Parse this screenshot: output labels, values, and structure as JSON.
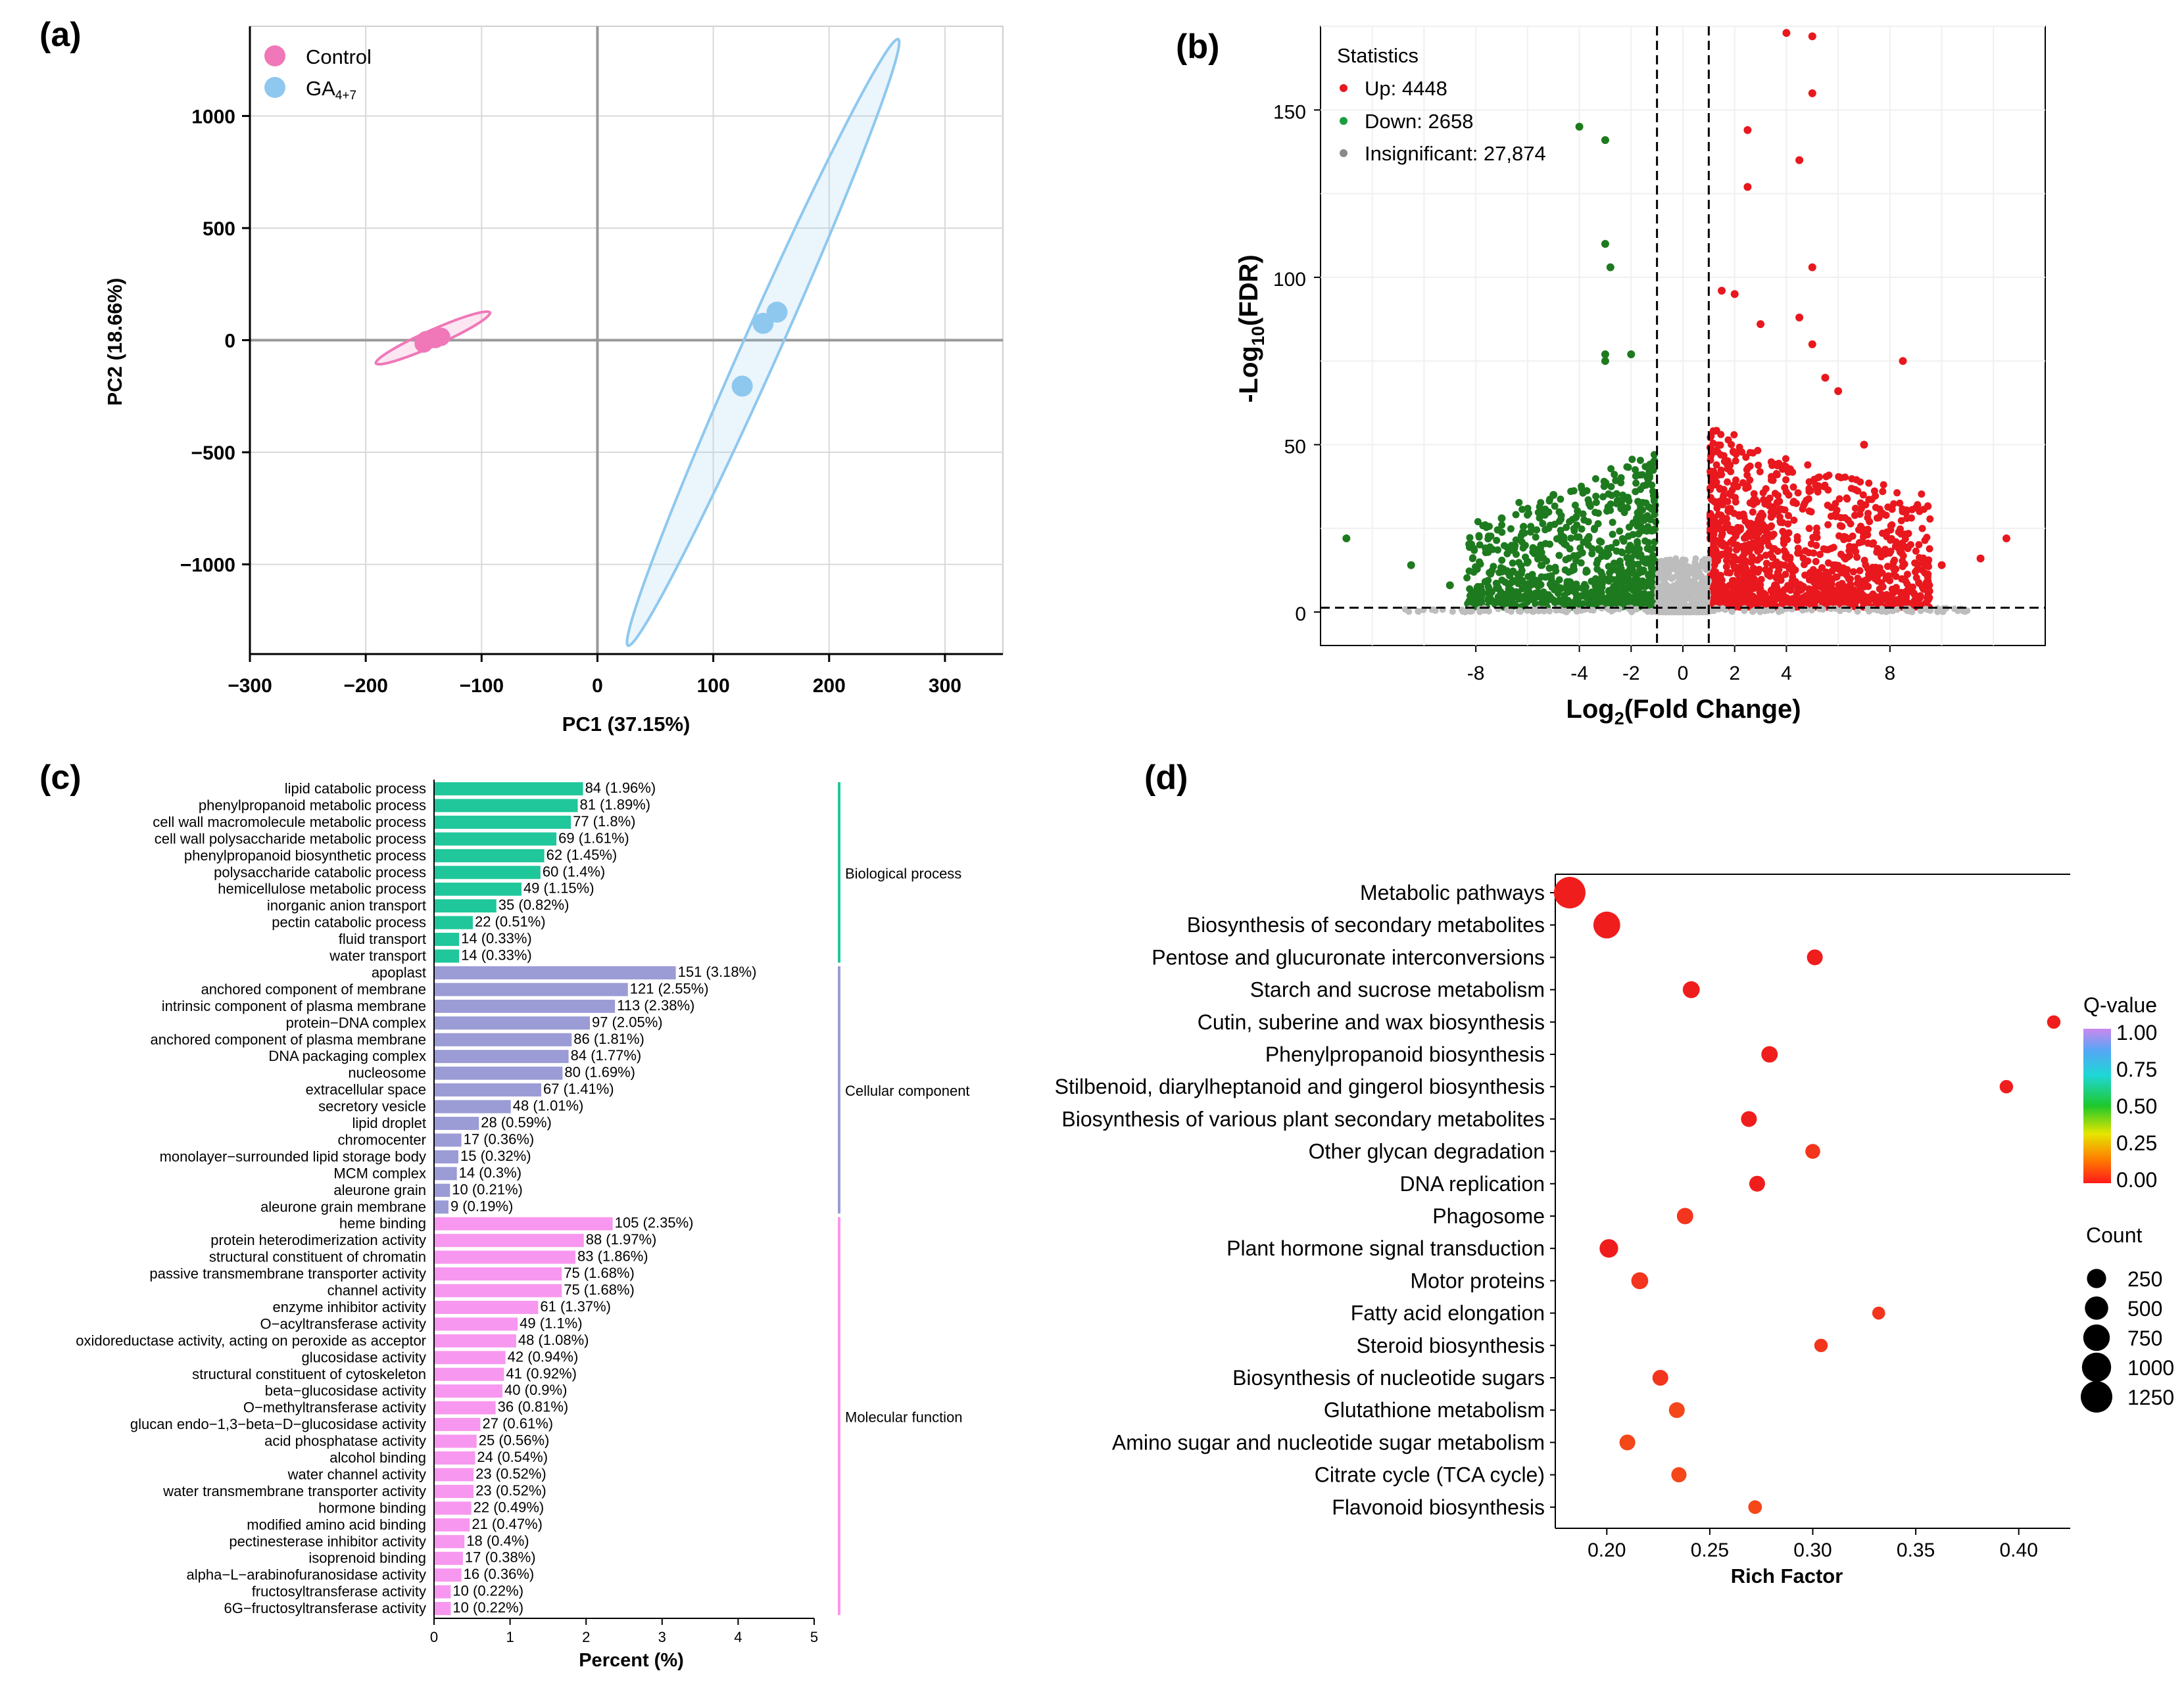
{
  "panels": {
    "a": {
      "label": "(a)"
    },
    "b": {
      "label": "(b)"
    },
    "c": {
      "label": "(c)"
    },
    "d": {
      "label": "(d)"
    }
  },
  "chart_data": [
    {
      "panel": "a",
      "type": "scatter",
      "xlabel": "PC1 (37.15%)",
      "ylabel": "PC2 (18.66%)",
      "xlim": [
        -300,
        350
      ],
      "ylim": [
        -1400,
        1400
      ],
      "xticks": [
        -300,
        -200,
        -100,
        0,
        100,
        200,
        300
      ],
      "yticks": [
        -1000,
        -500,
        0,
        500,
        1000
      ],
      "tick_labels_x": [
        "−300",
        "−200",
        "−100",
        "0",
        "100",
        "200",
        "300"
      ],
      "tick_labels_y": [
        "−1000",
        "−500",
        "0",
        "500",
        "1000"
      ],
      "grid": true,
      "legend_position": "top-left",
      "series": [
        {
          "name": "Control",
          "legend_main": "Control",
          "legend_sub": "",
          "color": "#f077b8",
          "points": [
            [
              -150,
              -15
            ],
            [
              -140,
              5
            ],
            [
              -135,
              15
            ],
            [
              -148,
              0
            ]
          ],
          "ellipse": {
            "center": [
              -142,
              10
            ],
            "rx": 95,
            "ry": 12,
            "angle": -24
          }
        },
        {
          "name": "GA4+7",
          "legend_main": "GA",
          "legend_sub": "4+7",
          "color": "#8ec8ef",
          "points": [
            [
              155,
              125
            ],
            [
              143,
              75
            ],
            [
              125,
              -205
            ]
          ],
          "ellipse": {
            "center": [
              143,
              -10
            ],
            "rx": 505,
            "ry": 28,
            "angle": -66
          }
        }
      ]
    },
    {
      "panel": "b",
      "type": "scatter",
      "title": "Statistics",
      "xlabel_main": "Log",
      "xlabel_sub": "2",
      "xlabel_rest": "(Fold Change)",
      "ylabel_main": "-Log",
      "ylabel_sub": "10",
      "ylabel_rest": "(FDR)",
      "xlim": [
        -14,
        14
      ],
      "ylim": [
        -10,
        175
      ],
      "xticks": [
        -8,
        -4,
        -2,
        0,
        2,
        4,
        8
      ],
      "yticks": [
        0,
        50,
        100,
        150
      ],
      "tick_labels_x": [
        "-8",
        "-4",
        "-2",
        "0",
        "2",
        "4",
        "8"
      ],
      "tick_labels_y": [
        "0",
        "50",
        "100",
        "150"
      ],
      "thresholds": {
        "x": [
          -1,
          1
        ],
        "y": 1.3
      },
      "grid": true,
      "legend_position": "top-left",
      "series": [
        {
          "name": "Up: 4448",
          "color": "#e8181e"
        },
        {
          "name": "Down: 2658",
          "color": "#1a9c40",
          "marker_color": "#1e7a1e"
        },
        {
          "name": "Insignificant: 27,874",
          "color": "#8a8a8a",
          "marker_color": "#bdbdbd"
        }
      ],
      "highlight_points": {
        "up": [
          [
            4,
            173
          ],
          [
            5,
            172
          ],
          [
            5,
            155
          ],
          [
            2.5,
            144
          ],
          [
            4.5,
            135
          ],
          [
            2.5,
            127
          ],
          [
            5,
            103
          ],
          [
            1.5,
            96
          ],
          [
            2,
            95
          ],
          [
            8.5,
            75
          ],
          [
            4.5,
            88
          ],
          [
            3,
            86
          ],
          [
            5,
            80
          ],
          [
            6,
            66
          ],
          [
            5.5,
            70
          ],
          [
            7,
            50
          ],
          [
            12.5,
            22
          ],
          [
            11.5,
            16
          ],
          [
            10,
            14
          ]
        ],
        "down": [
          [
            -4,
            145
          ],
          [
            -3,
            141
          ],
          [
            -3,
            110
          ],
          [
            -2.8,
            103
          ],
          [
            -3,
            77
          ],
          [
            -2,
            77
          ],
          [
            -3,
            75
          ],
          [
            -13,
            22
          ],
          [
            -10.5,
            14
          ],
          [
            -9,
            8
          ],
          [
            -5,
            35
          ],
          [
            -7,
            28
          ],
          [
            -6,
            15
          ]
        ]
      }
    },
    {
      "panel": "c",
      "type": "bar",
      "orientation": "horizontal",
      "xlabel": "Percent (%)",
      "xlim": [
        0,
        5
      ],
      "xticks": [
        0,
        1,
        2,
        3,
        4,
        5
      ],
      "tick_labels_x": [
        "0",
        "1",
        "2",
        "3",
        "4",
        "5"
      ],
      "groups": [
        {
          "name": "Biological process",
          "color": "#1fc79a",
          "items": [
            {
              "label": "lipid catabolic process",
              "count": 84,
              "percent": 1.96,
              "text": "84 (1.96%)"
            },
            {
              "label": "phenylpropanoid metabolic process",
              "count": 81,
              "percent": 1.89,
              "text": "81 (1.89%)"
            },
            {
              "label": "cell wall macromolecule metabolic process",
              "count": 77,
              "percent": 1.8,
              "text": "77 (1.8%)"
            },
            {
              "label": "cell wall polysaccharide metabolic process",
              "count": 69,
              "percent": 1.61,
              "text": "69 (1.61%)"
            },
            {
              "label": "phenylpropanoid biosynthetic process",
              "count": 62,
              "percent": 1.45,
              "text": "62 (1.45%)"
            },
            {
              "label": "polysaccharide catabolic process",
              "count": 60,
              "percent": 1.4,
              "text": "60 (1.4%)"
            },
            {
              "label": "hemicellulose metabolic process",
              "count": 49,
              "percent": 1.15,
              "text": "49 (1.15%)"
            },
            {
              "label": "inorganic anion transport",
              "count": 35,
              "percent": 0.82,
              "text": "35 (0.82%)"
            },
            {
              "label": "pectin catabolic process",
              "count": 22,
              "percent": 0.51,
              "text": "22 (0.51%)"
            },
            {
              "label": "fluid transport",
              "count": 14,
              "percent": 0.33,
              "text": "14 (0.33%)"
            },
            {
              "label": "water transport",
              "count": 14,
              "percent": 0.33,
              "text": "14 (0.33%)"
            }
          ]
        },
        {
          "name": "Cellular component",
          "color": "#9b9bd6",
          "items": [
            {
              "label": "apoplast",
              "count": 151,
              "percent": 3.18,
              "text": "151 (3.18%)"
            },
            {
              "label": "anchored component of membrane",
              "count": 121,
              "percent": 2.55,
              "text": "121 (2.55%)"
            },
            {
              "label": "intrinsic component of plasma membrane",
              "count": 113,
              "percent": 2.38,
              "text": "113 (2.38%)"
            },
            {
              "label": "protein−DNA complex",
              "count": 97,
              "percent": 2.05,
              "text": "97 (2.05%)"
            },
            {
              "label": "anchored component of plasma membrane",
              "count": 86,
              "percent": 1.81,
              "text": "86 (1.81%)"
            },
            {
              "label": "DNA packaging complex",
              "count": 84,
              "percent": 1.77,
              "text": "84 (1.77%)"
            },
            {
              "label": "nucleosome",
              "count": 80,
              "percent": 1.69,
              "text": "80 (1.69%)"
            },
            {
              "label": "extracellular space",
              "count": 67,
              "percent": 1.41,
              "text": "67 (1.41%)"
            },
            {
              "label": "secretory vesicle",
              "count": 48,
              "percent": 1.01,
              "text": "48 (1.01%)"
            },
            {
              "label": "lipid droplet",
              "count": 28,
              "percent": 0.59,
              "text": "28 (0.59%)"
            },
            {
              "label": "chromocenter",
              "count": 17,
              "percent": 0.36,
              "text": "17 (0.36%)"
            },
            {
              "label": "monolayer−surrounded lipid storage body",
              "count": 15,
              "percent": 0.32,
              "text": "15 (0.32%)"
            },
            {
              "label": "MCM complex",
              "count": 14,
              "percent": 0.3,
              "text": "14 (0.3%)"
            },
            {
              "label": "aleurone grain",
              "count": 10,
              "percent": 0.21,
              "text": "10 (0.21%)"
            },
            {
              "label": "aleurone grain membrane",
              "count": 9,
              "percent": 0.19,
              "text": "9 (0.19%)"
            }
          ]
        },
        {
          "name": "Molecular function",
          "color": "#f797ef",
          "items": [
            {
              "label": "heme binding",
              "count": 105,
              "percent": 2.35,
              "text": "105 (2.35%)"
            },
            {
              "label": "protein heterodimerization activity",
              "count": 88,
              "percent": 1.97,
              "text": "88 (1.97%)"
            },
            {
              "label": "structural constituent of chromatin",
              "count": 83,
              "percent": 1.86,
              "text": "83 (1.86%)"
            },
            {
              "label": "passive transmembrane transporter activity",
              "count": 75,
              "percent": 1.68,
              "text": "75 (1.68%)"
            },
            {
              "label": "channel activity",
              "count": 75,
              "percent": 1.68,
              "text": "75 (1.68%)"
            },
            {
              "label": "enzyme inhibitor activity",
              "count": 61,
              "percent": 1.37,
              "text": "61 (1.37%)"
            },
            {
              "label": "O−acyltransferase activity",
              "count": 49,
              "percent": 1.1,
              "text": "49 (1.1%)"
            },
            {
              "label": "oxidoreductase activity, acting on peroxide as acceptor",
              "count": 48,
              "percent": 1.08,
              "text": "48 (1.08%)"
            },
            {
              "label": "glucosidase activity",
              "count": 42,
              "percent": 0.94,
              "text": "42 (0.94%)"
            },
            {
              "label": "structural constituent of cytoskeleton",
              "count": 41,
              "percent": 0.92,
              "text": "41 (0.92%)"
            },
            {
              "label": "beta−glucosidase activity",
              "count": 40,
              "percent": 0.9,
              "text": "40 (0.9%)"
            },
            {
              "label": "O−methyltransferase activity",
              "count": 36,
              "percent": 0.81,
              "text": "36 (0.81%)"
            },
            {
              "label": "glucan endo−1,3−beta−D−glucosidase activity",
              "count": 27,
              "percent": 0.61,
              "text": "27 (0.61%)"
            },
            {
              "label": "acid phosphatase activity",
              "count": 25,
              "percent": 0.56,
              "text": "25 (0.56%)"
            },
            {
              "label": "alcohol binding",
              "count": 24,
              "percent": 0.54,
              "text": "24 (0.54%)"
            },
            {
              "label": "water channel activity",
              "count": 23,
              "percent": 0.52,
              "text": "23 (0.52%)"
            },
            {
              "label": "water transmembrane transporter activity",
              "count": 23,
              "percent": 0.52,
              "text": "23 (0.52%)"
            },
            {
              "label": "hormone binding",
              "count": 22,
              "percent": 0.49,
              "text": "22 (0.49%)"
            },
            {
              "label": "modified amino acid binding",
              "count": 21,
              "percent": 0.47,
              "text": "21 (0.47%)"
            },
            {
              "label": "pectinesterase inhibitor activity",
              "count": 18,
              "percent": 0.4,
              "text": "18 (0.4%)"
            },
            {
              "label": "isoprenoid binding",
              "count": 17,
              "percent": 0.38,
              "text": "17 (0.38%)"
            },
            {
              "label": "alpha−L−arabinofuranosidase activity",
              "count": 16,
              "percent": 0.36,
              "text": "16 (0.36%)"
            },
            {
              "label": "fructosyltransferase activity",
              "count": 10,
              "percent": 0.22,
              "text": "10 (0.22%)"
            },
            {
              "label": "6G−fructosyltransferase activity",
              "count": 10,
              "percent": 0.22,
              "text": "10 (0.22%)"
            }
          ]
        }
      ]
    },
    {
      "panel": "d",
      "type": "scatter",
      "subtype": "bubble",
      "xlabel": "Rich Factor",
      "xlim": [
        0.175,
        0.425
      ],
      "xticks": [
        0.2,
        0.25,
        0.3,
        0.35,
        0.4
      ],
      "tick_labels_x": [
        "0.20",
        "0.25",
        "0.30",
        "0.35",
        "0.40"
      ],
      "grid": false,
      "colorbar": {
        "title": "Q-value",
        "min": 0,
        "max": 1,
        "ticks": [
          "1.00",
          "0.75",
          "0.50",
          "0.25",
          "0.00"
        ]
      },
      "size_legend": {
        "title": "Count",
        "values": [
          250,
          500,
          750,
          1000,
          1250
        ],
        "labels": [
          "250",
          "500",
          "750",
          "1000",
          "1250"
        ]
      },
      "pathways": [
        {
          "label": "Metabolic pathways",
          "rich_factor": 0.182,
          "count": 1250,
          "q_value": 0.0
        },
        {
          "label": "Biosynthesis of secondary metabolites",
          "rich_factor": 0.2,
          "count": 780,
          "q_value": 0.0
        },
        {
          "label": "Pentose and glucuronate interconversions",
          "rich_factor": 0.301,
          "count": 110,
          "q_value": 0.02
        },
        {
          "label": "Starch and sucrose metabolism",
          "rich_factor": 0.241,
          "count": 150,
          "q_value": 0.02
        },
        {
          "label": "Cutin, suberine and wax biosynthesis",
          "rich_factor": 0.417,
          "count": 45,
          "q_value": 0.03
        },
        {
          "label": "Phenylpropanoid biosynthesis",
          "rich_factor": 0.279,
          "count": 130,
          "q_value": 0.02
        },
        {
          "label": "Stilbenoid, diarylheptanoid and gingerol biosynthesis",
          "rich_factor": 0.394,
          "count": 45,
          "q_value": 0.03
        },
        {
          "label": "Biosynthesis of various plant secondary metabolites",
          "rich_factor": 0.269,
          "count": 110,
          "q_value": 0.03
        },
        {
          "label": "Other glycan degradation",
          "rich_factor": 0.3,
          "count": 80,
          "q_value": 0.04
        },
        {
          "label": "DNA replication",
          "rich_factor": 0.273,
          "count": 110,
          "q_value": 0.03
        },
        {
          "label": "Phagosome",
          "rich_factor": 0.238,
          "count": 130,
          "q_value": 0.04
        },
        {
          "label": "Plant hormone signal transduction",
          "rich_factor": 0.201,
          "count": 220,
          "q_value": 0.03
        },
        {
          "label": "Motor proteins",
          "rich_factor": 0.216,
          "count": 150,
          "q_value": 0.05
        },
        {
          "label": "Fatty acid elongation",
          "rich_factor": 0.332,
          "count": 35,
          "q_value": 0.07
        },
        {
          "label": "Steroid biosynthesis",
          "rich_factor": 0.304,
          "count": 45,
          "q_value": 0.08
        },
        {
          "label": "Biosynthesis of nucleotide sugars",
          "rich_factor": 0.226,
          "count": 110,
          "q_value": 0.08
        },
        {
          "label": "Glutathione metabolism",
          "rich_factor": 0.234,
          "count": 110,
          "q_value": 0.1
        },
        {
          "label": "Amino sugar and nucleotide sugar metabolism",
          "rich_factor": 0.21,
          "count": 110,
          "q_value": 0.1
        },
        {
          "label": "Citrate cycle (TCA cycle)",
          "rich_factor": 0.235,
          "count": 90,
          "q_value": 0.12
        },
        {
          "label": "Flavonoid biosynthesis",
          "rich_factor": 0.272,
          "count": 50,
          "q_value": 0.14
        }
      ]
    }
  ]
}
